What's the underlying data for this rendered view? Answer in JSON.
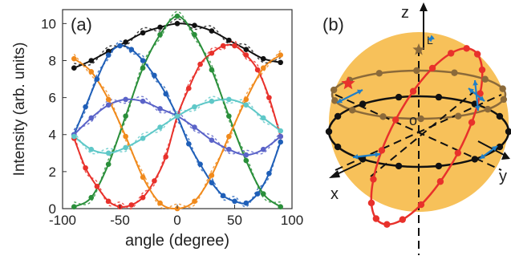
{
  "panel_a": {
    "label": "(a)",
    "xlabel": "angle (degree)",
    "ylabel": "Intensity (arb. units)"
  },
  "panel_b": {
    "label": "(b)",
    "axis_z": "z",
    "axis_x": "x",
    "axis_y": "y",
    "origin": "o",
    "marker_L": "L"
  },
  "chart_data": {
    "type": "line",
    "xlim": [
      -100,
      100
    ],
    "ylim": [
      0,
      10
    ],
    "xticks": [
      "-100",
      "-50",
      "0",
      "50",
      "100"
    ],
    "yticks": [
      "0",
      "2",
      "4",
      "6",
      "8",
      "10"
    ],
    "grid": false,
    "series": [
      {
        "color": "#111111",
        "kind": "total",
        "x": [
          -90,
          -75,
          -60,
          -45,
          -30,
          -15,
          0,
          15,
          30,
          45,
          60,
          75,
          90
        ],
        "y": [
          7.6,
          8.0,
          8.5,
          9.0,
          9.5,
          9.8,
          10.0,
          9.9,
          9.6,
          9.1,
          8.6,
          8.1,
          7.9
        ]
      },
      {
        "color": "#e8312b",
        "kind": "data",
        "x": [
          -90,
          -80,
          -70,
          -60,
          -50,
          -40,
          -30,
          -20,
          -10,
          0,
          10,
          20,
          30,
          40,
          50,
          60,
          70,
          80,
          90
        ],
        "y": [
          3.8,
          2.2,
          1.2,
          0.4,
          0.1,
          0.2,
          0.6,
          1.5,
          2.8,
          5.0,
          6.5,
          7.8,
          8.4,
          8.8,
          8.8,
          8.3,
          7.5,
          6.0,
          3.9
        ]
      },
      {
        "color": "#1f5fb8",
        "kind": "data",
        "x": [
          -90,
          -80,
          -70,
          -60,
          -50,
          -40,
          -30,
          -20,
          -10,
          0,
          10,
          20,
          30,
          40,
          50,
          60,
          70,
          80,
          90
        ],
        "y": [
          4.0,
          5.5,
          7.0,
          8.3,
          8.8,
          8.6,
          8.0,
          7.2,
          6.2,
          5.0,
          3.5,
          2.4,
          1.4,
          0.7,
          0.4,
          0.3,
          0.8,
          1.9,
          3.6
        ]
      },
      {
        "color": "#2a8f3a",
        "kind": "data",
        "x": [
          -90,
          -75,
          -60,
          -45,
          -30,
          -15,
          0,
          15,
          30,
          45,
          60,
          75,
          90
        ],
        "y": [
          0.1,
          0.6,
          2.4,
          5.0,
          7.6,
          9.4,
          10.4,
          9.4,
          7.5,
          5.0,
          2.6,
          0.8,
          0.1
        ]
      },
      {
        "color": "#f08a1c",
        "kind": "data",
        "x": [
          -90,
          -75,
          -60,
          -45,
          -30,
          -15,
          0,
          15,
          30,
          45,
          60,
          75,
          90
        ],
        "y": [
          8.1,
          7.4,
          5.9,
          3.9,
          1.7,
          0.3,
          0.0,
          0.4,
          1.8,
          3.9,
          5.9,
          7.6,
          8.3
        ]
      },
      {
        "color": "#5a63c8",
        "kind": "data",
        "x": [
          -90,
          -75,
          -60,
          -45,
          -30,
          -15,
          0,
          15,
          30,
          45,
          60,
          75,
          90
        ],
        "y": [
          4.0,
          4.9,
          5.6,
          5.9,
          5.8,
          5.4,
          5.0,
          4.4,
          3.7,
          3.2,
          2.9,
          3.2,
          3.9
        ]
      },
      {
        "color": "#5fc8c8",
        "kind": "data",
        "x": [
          -90,
          -75,
          -60,
          -45,
          -30,
          -15,
          0,
          15,
          30,
          45,
          60,
          75,
          90
        ],
        "y": [
          3.9,
          3.2,
          3.0,
          3.3,
          3.8,
          4.4,
          5.0,
          5.5,
          5.8,
          5.9,
          5.6,
          4.9,
          4.2
        ]
      }
    ]
  },
  "sphere": {
    "fill": "#f7c15a",
    "great_circle_color": "#e8312b",
    "equator_color": "#111111",
    "latitude_color": "#8b6a3a",
    "arrow_color": "#1f7fc8",
    "star_color": "#e8312b",
    "star2_color": "#8b6a3a"
  }
}
